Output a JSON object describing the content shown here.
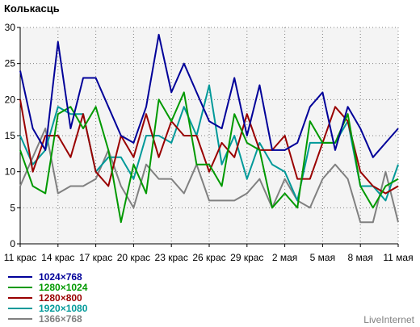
{
  "title": "Колькасць",
  "credit": "LiveInternet",
  "chart_data": {
    "type": "line",
    "x": [
      "11 крас",
      "12 крас",
      "13 крас",
      "14 крас",
      "15 крас",
      "16 крас",
      "17 крас",
      "18 крас",
      "19 крас",
      "20 крас",
      "21 крас",
      "22 крас",
      "23 крас",
      "24 крас",
      "25 крас",
      "26 крас",
      "27 крас",
      "28 крас",
      "29 крас",
      "30 крас",
      "1 мая",
      "2 мая",
      "3 мая",
      "4 мая",
      "5 мая",
      "6 мая",
      "7 мая",
      "8 мая",
      "9 мая",
      "10 мая",
      "11 мая"
    ],
    "xticks": [
      "11 крас",
      "14 крас",
      "17 крас",
      "20 крас",
      "23 крас",
      "26 крас",
      "29 крас",
      "2 мая",
      "5 мая",
      "8 мая",
      "11 мая"
    ],
    "ylim": [
      0,
      30
    ],
    "yticks": [
      0,
      5,
      10,
      15,
      20,
      25,
      30
    ],
    "grid": true,
    "legend_position": "bottom-left",
    "series": [
      {
        "name": "1024×768",
        "color": "#000099",
        "values": [
          24,
          16,
          13,
          28,
          16,
          23,
          23,
          19,
          15,
          14,
          19,
          29,
          21,
          25,
          21,
          17,
          16,
          23,
          15,
          22,
          13,
          13,
          14,
          19,
          21,
          13,
          19,
          16,
          12,
          14,
          16
        ]
      },
      {
        "name": "1280×1024",
        "color": "#009900",
        "values": [
          13,
          8,
          7,
          18,
          19,
          16,
          19,
          13,
          3,
          11,
          7,
          20,
          17,
          21,
          11,
          11,
          8,
          18,
          14,
          13,
          5,
          7,
          5,
          17,
          14,
          14,
          18,
          8,
          5,
          8,
          9
        ]
      },
      {
        "name": "1280×800",
        "color": "#990000",
        "values": [
          20,
          10,
          15,
          15,
          12,
          18,
          10,
          8,
          15,
          12,
          18,
          12,
          17,
          15,
          15,
          10,
          14,
          12,
          18,
          13,
          13,
          15,
          9,
          9,
          14,
          19,
          17,
          10,
          8,
          7,
          8
        ]
      },
      {
        "name": "1920×1080",
        "color": "#009999",
        "values": [
          15,
          11,
          13,
          19,
          18,
          18,
          10,
          12,
          12,
          9,
          15,
          15,
          14,
          19,
          15,
          22,
          11,
          15,
          9,
          14,
          11,
          10,
          6,
          14,
          14,
          14,
          17,
          8,
          8,
          6,
          11
        ]
      },
      {
        "name": "1366×768",
        "color": "#808080",
        "values": [
          8,
          12,
          16,
          7,
          8,
          8,
          9,
          13,
          8,
          5,
          11,
          9,
          9,
          7,
          11,
          6,
          6,
          6,
          7,
          9,
          5,
          9,
          6,
          5,
          9,
          11,
          9,
          3,
          3,
          10,
          3
        ]
      }
    ]
  }
}
